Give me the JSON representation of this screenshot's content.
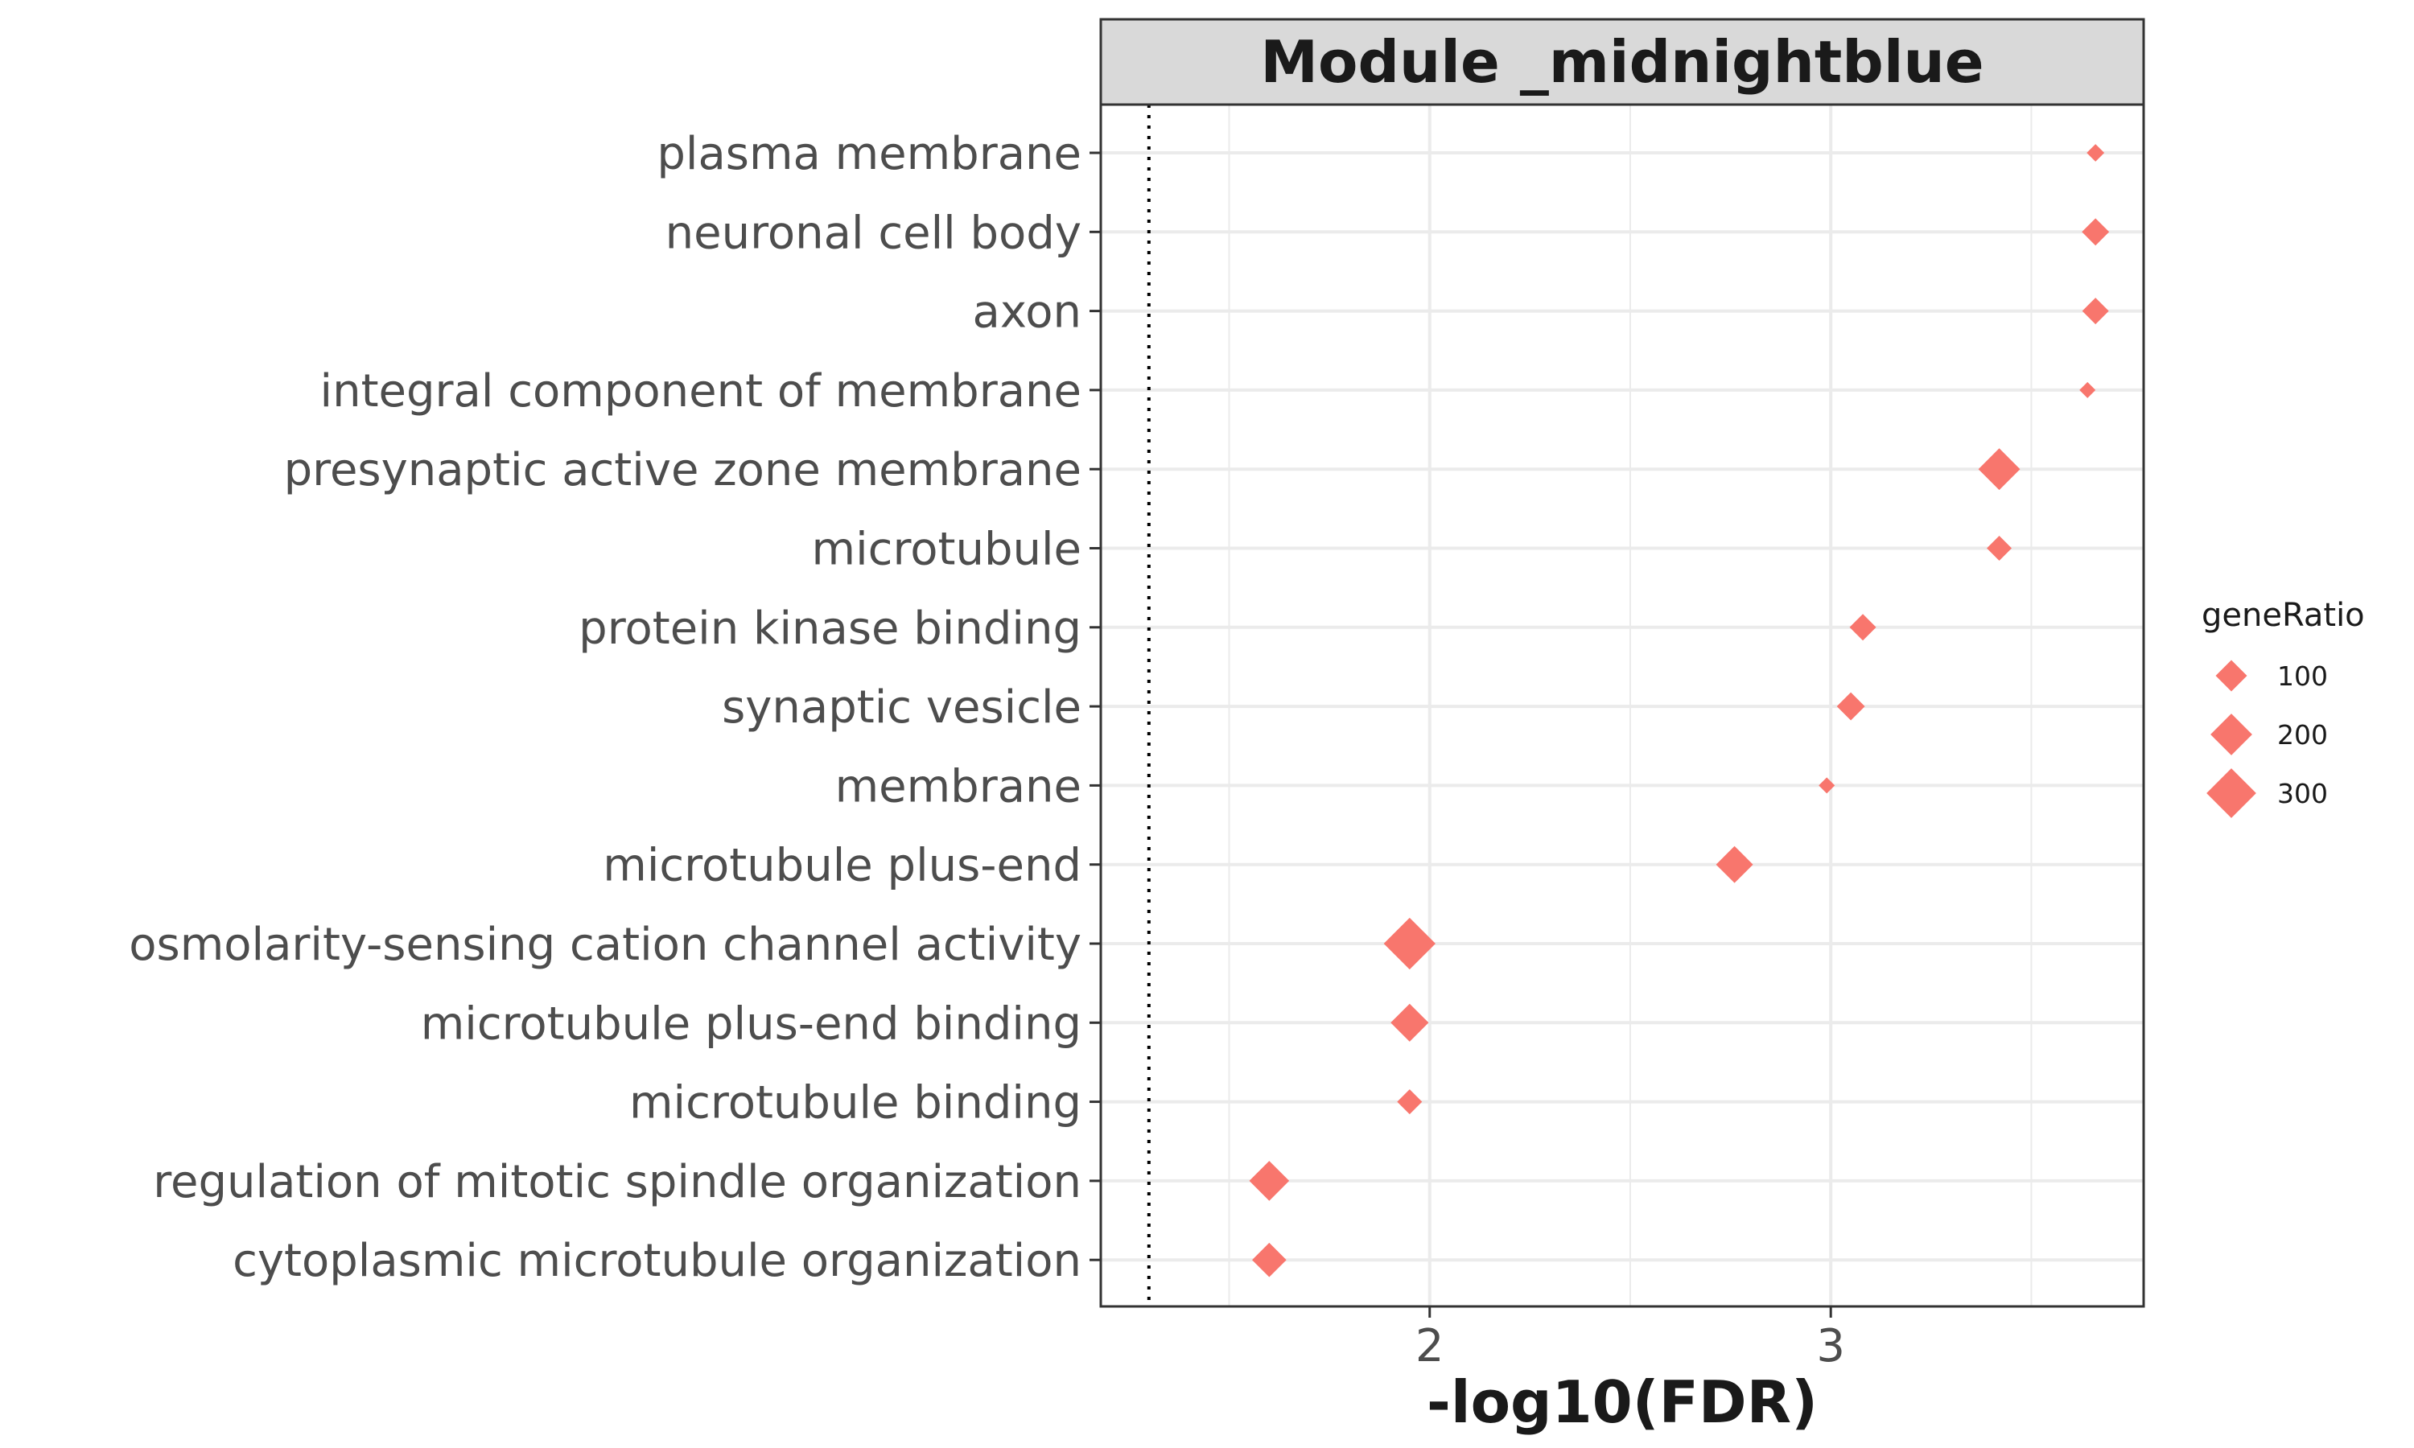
{
  "chart_data": {
    "type": "scatter",
    "title": "Module _midnightblue",
    "xlabel": "-log10(FDR)",
    "ylabel": "",
    "xlim": [
      1.18,
      3.78
    ],
    "xticks": [
      2,
      3
    ],
    "xtick_labels": [
      "2",
      "3"
    ],
    "threshold_x": 1.3,
    "grid": true,
    "marker": "diamond",
    "color": "#F8766D",
    "categories": [
      "plasma membrane",
      "neuronal cell body",
      "axon",
      "integral component of membrane",
      "presynaptic active zone membrane",
      "microtubule",
      "protein kinase binding",
      "synaptic vesicle",
      "membrane",
      "microtubule plus-end",
      "osmolarity-sensing cation channel activity",
      "microtubule plus-end binding",
      "microtubule binding",
      "regulation of mitotic spindle organization",
      "cytoplasmic microtubule organization"
    ],
    "x": [
      3.66,
      3.66,
      3.66,
      3.64,
      3.42,
      3.42,
      3.08,
      3.05,
      2.99,
      2.76,
      1.95,
      1.95,
      1.95,
      1.6,
      1.6
    ],
    "geneRatio": [
      20,
      70,
      65,
      15,
      200,
      55,
      65,
      75,
      15,
      150,
      330,
      160,
      55,
      180,
      125
    ],
    "legend": {
      "title": "geneRatio",
      "position": "right",
      "entries": [
        100,
        200,
        300
      ],
      "entry_labels": [
        "100",
        "200",
        "300"
      ]
    }
  }
}
